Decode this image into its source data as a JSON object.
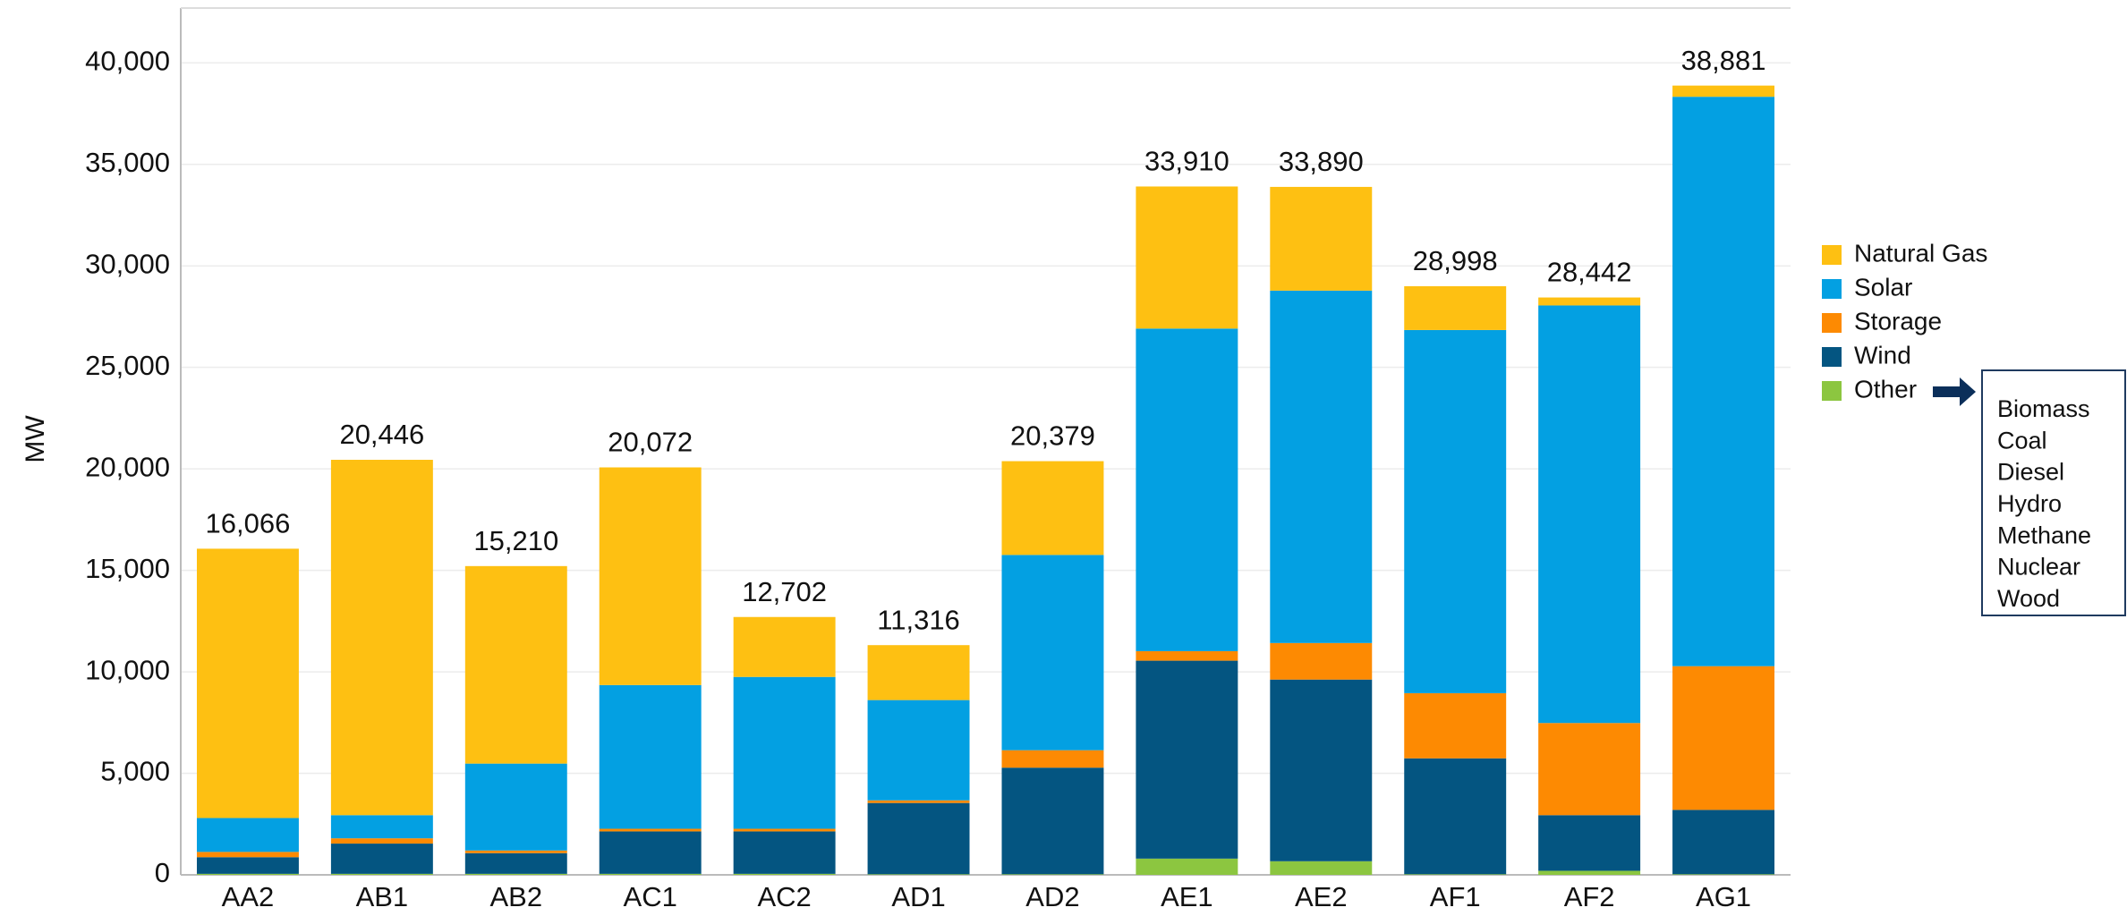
{
  "chart_data": {
    "type": "stacked_bar",
    "y_label": "MW",
    "categories": [
      "AA2",
      "AB1",
      "AB2",
      "AC1",
      "AC2",
      "AD1",
      "AD2",
      "AE1",
      "AE2",
      "AF1",
      "AF2",
      "AG1"
    ],
    "series": [
      {
        "name": "Other",
        "color": "#8cc640",
        "values": [
          50,
          50,
          50,
          50,
          50,
          30,
          30,
          800,
          670,
          30,
          200,
          30
        ]
      },
      {
        "name": "Wind",
        "color": "#045581",
        "values": [
          820,
          1490,
          1020,
          2090,
          2090,
          3510,
          5250,
          9750,
          8950,
          5710,
          2740,
          3170
        ]
      },
      {
        "name": "Storage",
        "color": "#fd8a02",
        "values": [
          260,
          260,
          130,
          130,
          130,
          130,
          860,
          470,
          1800,
          3210,
          4540,
          7080
        ]
      },
      {
        "name": "Solar",
        "color": "#03a0e2",
        "values": [
          1670,
          1140,
          4280,
          7080,
          7480,
          4940,
          9620,
          15890,
          17360,
          17890,
          20570,
          28050
        ]
      },
      {
        "name": "Natural Gas",
        "color": "#fec012",
        "values": [
          13266,
          17506,
          9730,
          10722,
          2952,
          2706,
          4619,
          7000,
          5110,
          2158,
          392,
          551
        ]
      }
    ],
    "totals": [
      16066,
      20446,
      15210,
      20072,
      12702,
      11316,
      20379,
      33910,
      33890,
      28998,
      28442,
      38881
    ],
    "total_labels": [
      "16,066",
      "20,446",
      "15,210",
      "20,072",
      "12,702",
      "11,316",
      "20,379",
      "33,910",
      "33,890",
      "28,998",
      "28,442",
      "38,881"
    ],
    "ylim": [
      0,
      42700
    ],
    "yticks": [
      0,
      {
        "value": 5000,
        "label": "5,000"
      },
      {
        "value": 10000,
        "label": "10,000"
      },
      {
        "value": 15000,
        "label": "15,000"
      },
      {
        "value": 20000,
        "label": "20,000"
      },
      {
        "value": 25000,
        "label": "25,000"
      },
      {
        "value": 30000,
        "label": "30,000"
      },
      {
        "value": 35000,
        "label": "35,000"
      },
      {
        "value": 40000,
        "label": "40,000"
      }
    ],
    "grid": true,
    "legend": "right",
    "other_breakdown": [
      "Biomass",
      "Coal",
      "Diesel",
      "Hydro",
      "Methane",
      "Nuclear",
      "Wood"
    ]
  }
}
